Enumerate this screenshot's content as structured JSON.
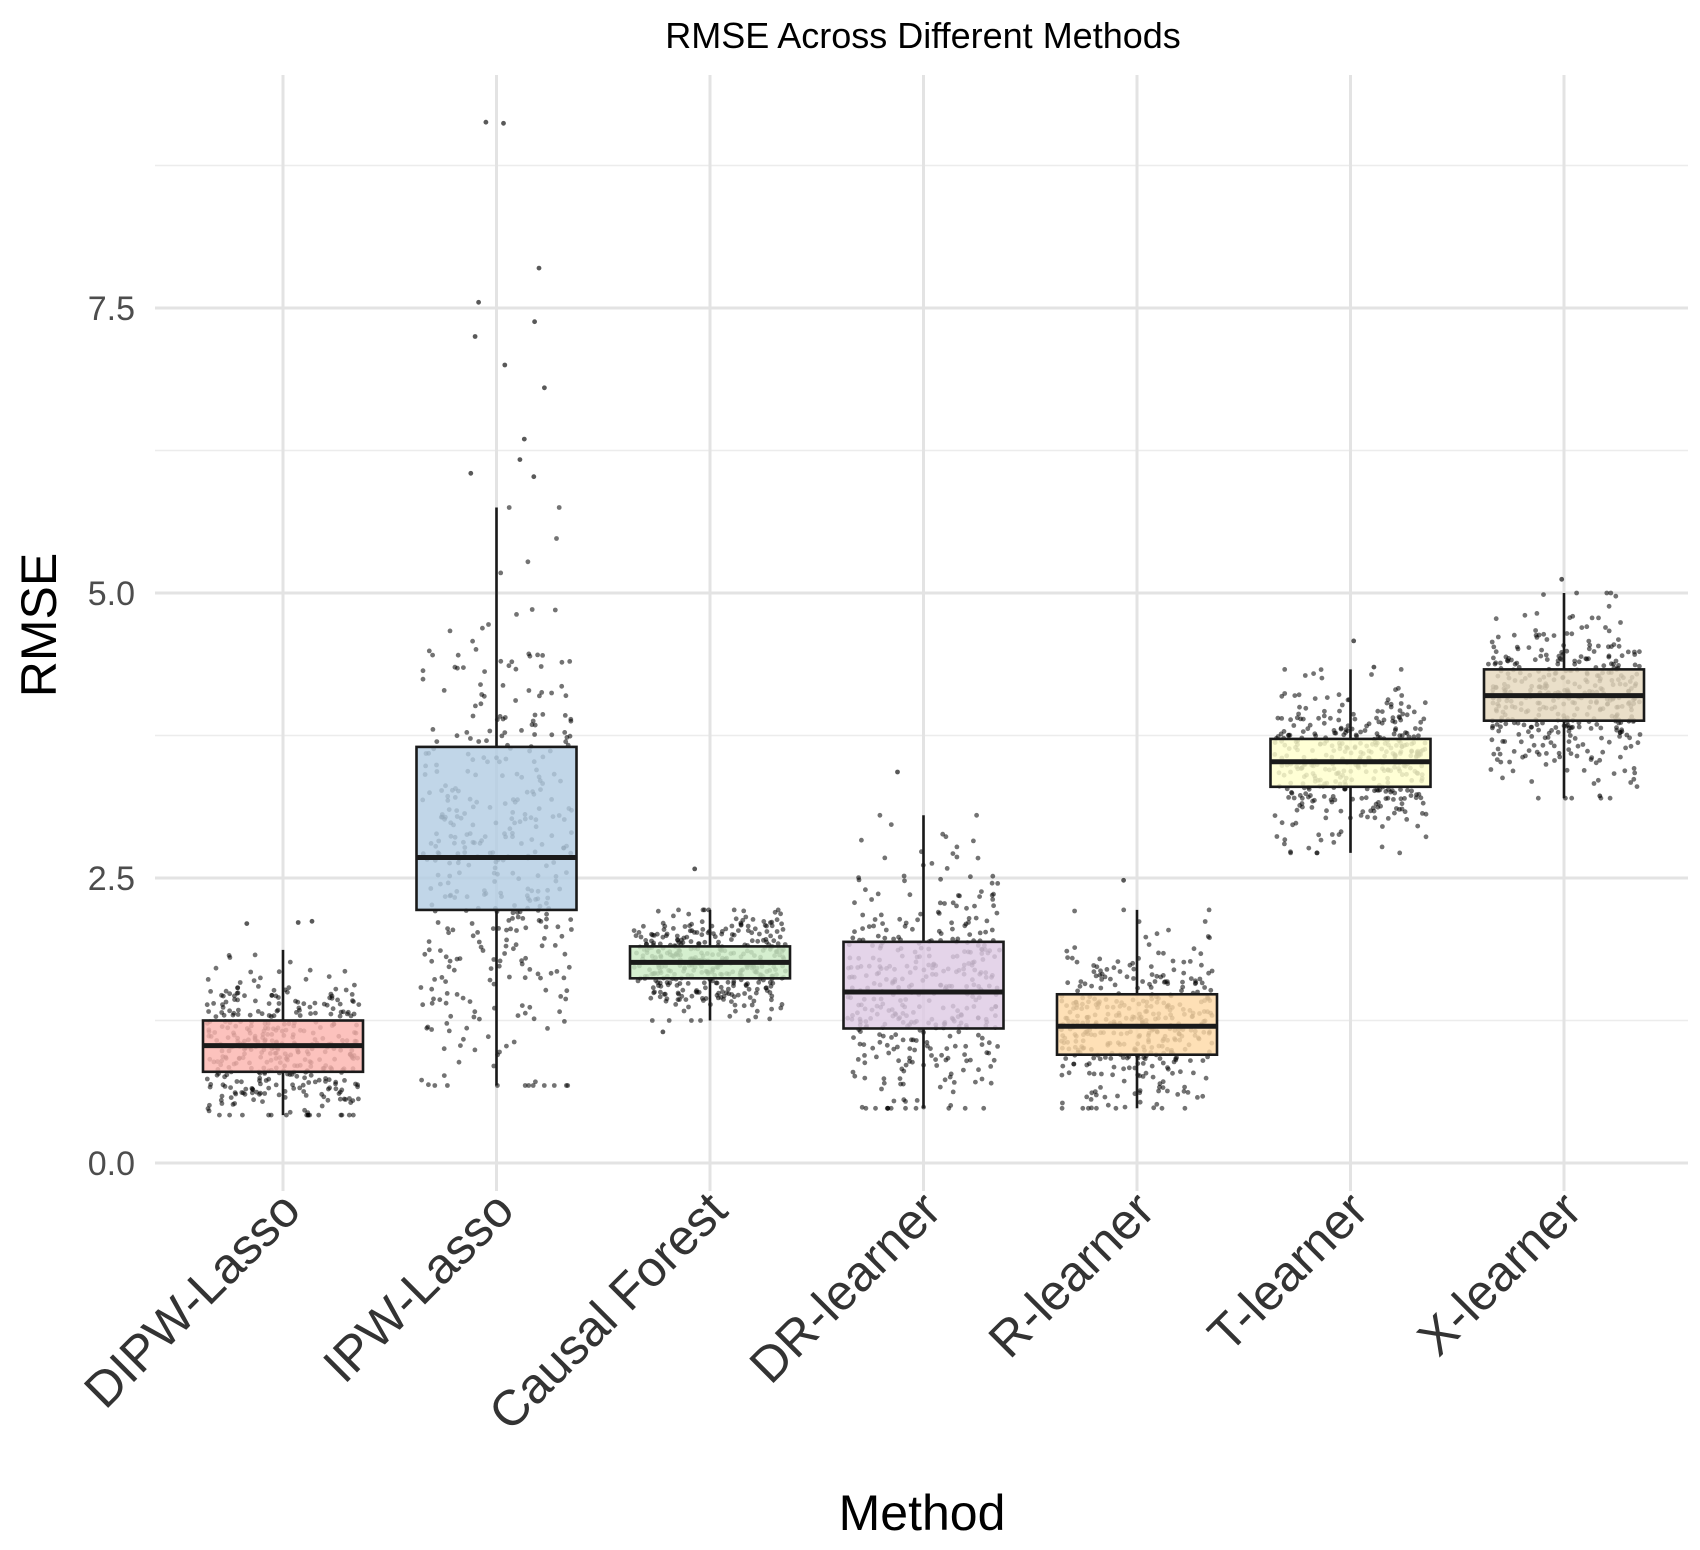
{
  "chart_data": {
    "type": "boxplot",
    "title": "RMSE Across Different Methods",
    "xlabel": "Method",
    "ylabel": "RMSE",
    "ylim": [
      0,
      9.45
    ],
    "yticks": [
      0.0,
      2.5,
      5.0,
      7.5
    ],
    "ytick_labels": [
      "0.0",
      "2.5",
      "5.0",
      "7.5"
    ],
    "grid": true,
    "legend": "none",
    "points_per_group": 400,
    "categories": [
      "DIPW-Lasso",
      "IPW-Lasso",
      "Causal Forest",
      "DR-learner",
      "R-learner",
      "T-learner",
      "X-learner"
    ],
    "colors": [
      "#fbb4ae",
      "#b3cde3",
      "#ccebc5",
      "#decbe4",
      "#fed9a6",
      "#ffffcc",
      "#e5d8bd"
    ],
    "boxes": [
      {
        "name": "DIPW-Lasso",
        "whisker_low": 0.42,
        "q1": 0.8,
        "median": 1.03,
        "q3": 1.25,
        "whisker_high": 1.87,
        "outliers": [
          2.1,
          2.12,
          2.11
        ]
      },
      {
        "name": "IPW-Lasso",
        "whisker_low": 0.68,
        "q1": 2.22,
        "median": 2.68,
        "q3": 3.65,
        "whisker_high": 5.75,
        "outliers": [
          6.02,
          6.05,
          6.17,
          6.35,
          6.8,
          7.0,
          7.25,
          7.38,
          7.55,
          7.85,
          9.13,
          9.12
        ]
      },
      {
        "name": "Causal Forest",
        "whisker_low": 1.25,
        "q1": 1.62,
        "median": 1.76,
        "q3": 1.9,
        "whisker_high": 2.22,
        "outliers": [
          2.58,
          1.15
        ]
      },
      {
        "name": "DR-learner",
        "whisker_low": 0.48,
        "q1": 1.18,
        "median": 1.5,
        "q3": 1.94,
        "whisker_high": 3.05,
        "outliers": [
          3.43
        ]
      },
      {
        "name": "R-learner",
        "whisker_low": 0.48,
        "q1": 0.95,
        "median": 1.2,
        "q3": 1.48,
        "whisker_high": 2.22,
        "outliers": [
          2.48
        ]
      },
      {
        "name": "T-learner",
        "whisker_low": 2.72,
        "q1": 3.3,
        "median": 3.52,
        "q3": 3.72,
        "whisker_high": 4.33,
        "outliers": [
          4.58,
          4.35
        ]
      },
      {
        "name": "X-learner",
        "whisker_low": 3.2,
        "q1": 3.88,
        "median": 4.1,
        "q3": 4.33,
        "whisker_high": 5.0,
        "outliers": [
          5.12,
          3.22
        ]
      }
    ]
  }
}
